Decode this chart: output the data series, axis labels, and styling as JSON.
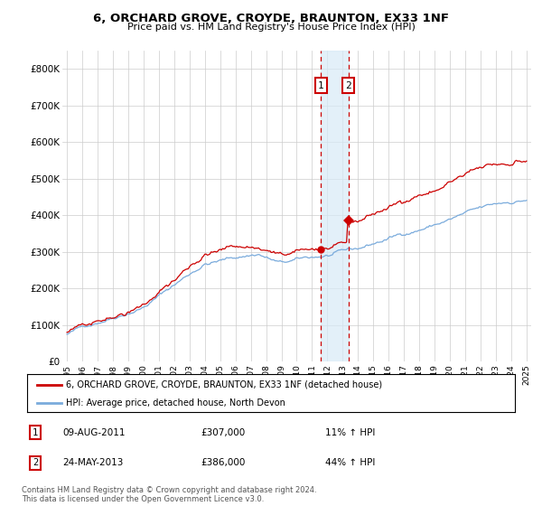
{
  "title": "6, ORCHARD GROVE, CROYDE, BRAUNTON, EX33 1NF",
  "subtitle": "Price paid vs. HM Land Registry's House Price Index (HPI)",
  "legend_line1": "6, ORCHARD GROVE, CROYDE, BRAUNTON, EX33 1NF (detached house)",
  "legend_line2": "HPI: Average price, detached house, North Devon",
  "transaction1_label": "1",
  "transaction1_date": "09-AUG-2011",
  "transaction1_price": "£307,000",
  "transaction1_hpi": "11% ↑ HPI",
  "transaction2_label": "2",
  "transaction2_date": "24-MAY-2013",
  "transaction2_price": "£386,000",
  "transaction2_hpi": "44% ↑ HPI",
  "footer": "Contains HM Land Registry data © Crown copyright and database right 2024.\nThis data is licensed under the Open Government Licence v3.0.",
  "ylim": [
    0,
    850000
  ],
  "yticks": [
    0,
    100000,
    200000,
    300000,
    400000,
    500000,
    600000,
    700000,
    800000
  ],
  "ytick_labels": [
    "£0",
    "£100K",
    "£200K",
    "£300K",
    "£400K",
    "£500K",
    "£600K",
    "£700K",
    "£800K"
  ],
  "hpi_color": "#7aabdc",
  "price_color": "#cc0000",
  "transaction1_x": 2011.583,
  "transaction2_x": 2013.375,
  "background_color": "#ffffff",
  "grid_color": "#cccccc",
  "xlim_left": 1994.7,
  "xlim_right": 2025.3
}
